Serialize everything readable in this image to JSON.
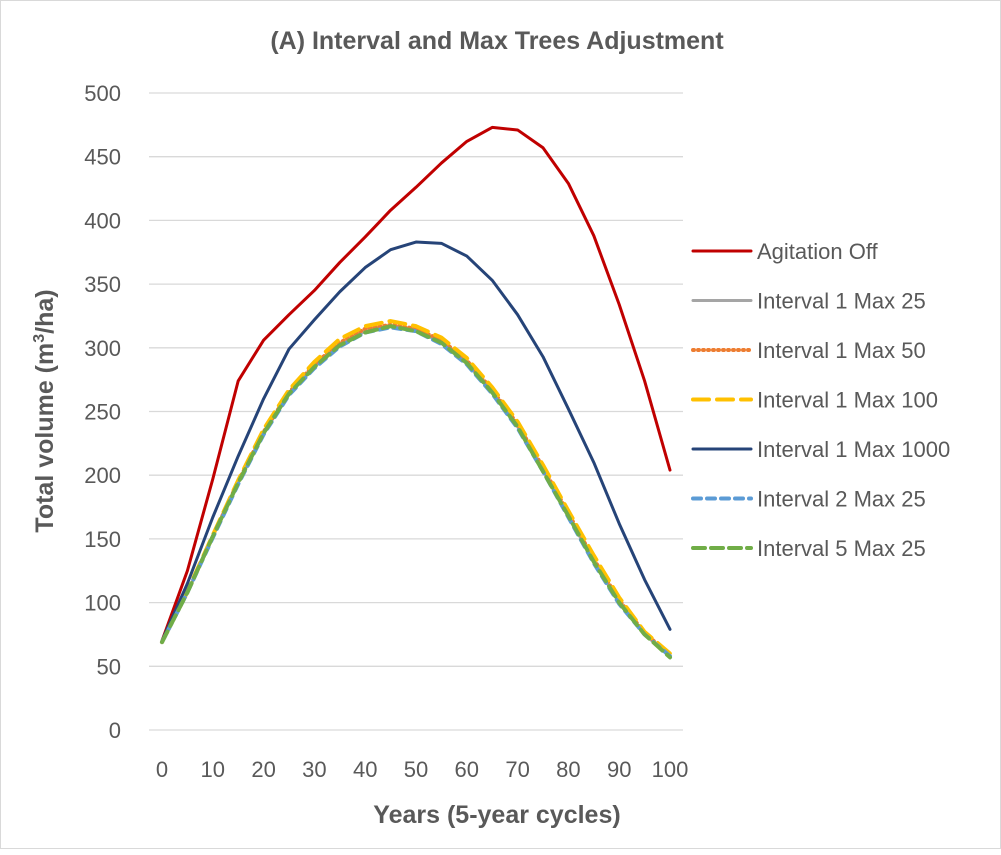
{
  "chart_data": {
    "type": "line",
    "title": "(A) Interval and Max Trees Adjustment",
    "xlabel": "Years (5-year cycles)",
    "ylabel_main": "Total volume (m",
    "ylabel_sup": "3",
    "ylabel_end": "/ha)",
    "xlim": [
      0,
      100
    ],
    "ylim": [
      0,
      500
    ],
    "xticks": [
      "0",
      "10",
      "20",
      "30",
      "40",
      "50",
      "60",
      "70",
      "80",
      "90",
      "100"
    ],
    "yticks": [
      "0",
      "50",
      "100",
      "150",
      "200",
      "250",
      "300",
      "350",
      "400",
      "450",
      "500"
    ],
    "grid": "horizontal",
    "legend": "right",
    "x": [
      0,
      5,
      10,
      15,
      20,
      25,
      30,
      35,
      40,
      45,
      50,
      55,
      60,
      65,
      70,
      75,
      80,
      85,
      90,
      95,
      100
    ],
    "series": [
      {
        "name": "Agitation Off",
        "color": "#c00000",
        "dash": "",
        "values": [
          70,
          125,
          197,
          274,
          306,
          326,
          345,
          367,
          387,
          408,
          426,
          445,
          462,
          473,
          471,
          457,
          429,
          388,
          334,
          274,
          204
        ]
      },
      {
        "name": "Interval 1 Max 25",
        "color": "#a5a5a5",
        "dash": "",
        "values": [
          69,
          108,
          152,
          194,
          233,
          264,
          285,
          302,
          313,
          317,
          314,
          304,
          288,
          265,
          238,
          204,
          168,
          132,
          100,
          75,
          58
        ]
      },
      {
        "name": "Interval 1 Max 50",
        "color": "#ed7d31",
        "dash": "1 4",
        "values": [
          69,
          108,
          152,
          195,
          234,
          265,
          287,
          304,
          315,
          318,
          315,
          306,
          290,
          267,
          240,
          206,
          170,
          134,
          102,
          76,
          59
        ]
      },
      {
        "name": "Interval 1 Max 100",
        "color": "#ffc000",
        "dash": "16 8",
        "values": [
          69,
          109,
          153,
          196,
          236,
          267,
          289,
          307,
          317,
          321,
          317,
          308,
          292,
          269,
          242,
          208,
          172,
          137,
          104,
          77,
          60
        ]
      },
      {
        "name": "Interval 1 Max 1000",
        "color": "#264478",
        "dash": "",
        "values": [
          70,
          115,
          167,
          215,
          260,
          299,
          322,
          344,
          363,
          377,
          383,
          382,
          372,
          353,
          326,
          293,
          252,
          210,
          162,
          118,
          79
        ]
      },
      {
        "name": "Interval 2 Max 25",
        "color": "#5b9bd5",
        "dash": "8 6",
        "values": [
          69,
          108,
          151,
          193,
          232,
          263,
          284,
          301,
          312,
          316,
          313,
          303,
          287,
          264,
          237,
          203,
          167,
          131,
          99,
          75,
          58
        ]
      },
      {
        "name": "Interval 5 Max 25",
        "color": "#70ad47",
        "dash": "12 6",
        "values": [
          69,
          108,
          152,
          194,
          233,
          264,
          285,
          302,
          312,
          317,
          313,
          304,
          288,
          265,
          238,
          203,
          168,
          132,
          100,
          75,
          57
        ]
      }
    ]
  }
}
